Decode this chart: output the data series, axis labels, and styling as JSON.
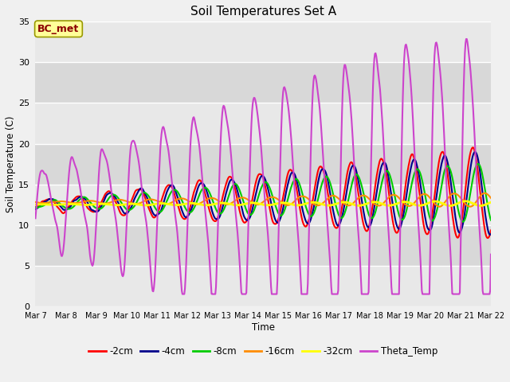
{
  "title": "Soil Temperatures Set A",
  "xlabel": "Time",
  "ylabel": "Soil Temperature (C)",
  "ylim": [
    0,
    35
  ],
  "annotation_text": "BC_met",
  "annotation_color": "#8B0000",
  "annotation_bg": "#FFFF99",
  "series": {
    "-2cm": {
      "color": "#FF0000",
      "lw": 1.5
    },
    "-4cm": {
      "color": "#00008B",
      "lw": 1.5
    },
    "-8cm": {
      "color": "#00CC00",
      "lw": 1.5
    },
    "-16cm": {
      "color": "#FF8C00",
      "lw": 1.5
    },
    "-32cm": {
      "color": "#FFFF00",
      "lw": 2.0
    },
    "Theta_Temp": {
      "color": "#CC44CC",
      "lw": 1.5
    }
  },
  "legend_order": [
    "-2cm",
    "-4cm",
    "-8cm",
    "-16cm",
    "-32cm",
    "Theta_Temp"
  ],
  "xtick_labels": [
    "Mar 7",
    "Mar 8",
    "Mar 9",
    "Mar 10",
    "Mar 11",
    "Mar 12",
    "Mar 13",
    "Mar 14",
    "Mar 15",
    "Mar 16",
    "Mar 17",
    "Mar 18",
    "Mar 19",
    "Mar 20",
    "Mar 21",
    "Mar 22"
  ],
  "band_colors": [
    "#DCDCDC",
    "#EBEBEB"
  ],
  "plot_bg": "#DCDCDC"
}
